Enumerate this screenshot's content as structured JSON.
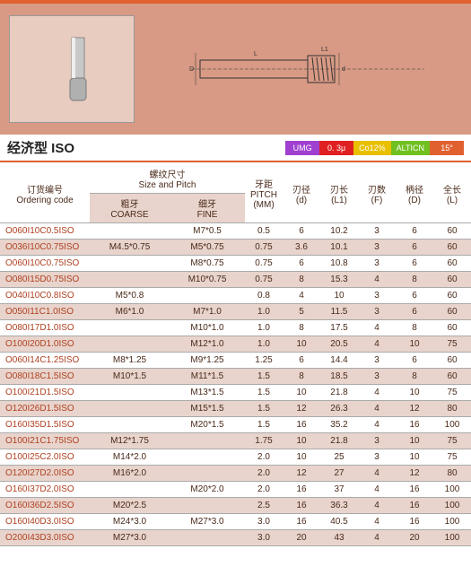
{
  "title": "经济型  ISO",
  "badges": [
    {
      "label": "UMG",
      "bg": "#a040d0"
    },
    {
      "label": "0. 3μ",
      "bg": "#e02020"
    },
    {
      "label": "Co12%",
      "bg": "#e8c000"
    },
    {
      "label": "ALTICN",
      "bg": "#70c020"
    },
    {
      "label": "15°",
      "bg": "#e06030"
    }
  ],
  "headers": {
    "code": "订货编号",
    "code_en": "Ordering code",
    "size": "螺纹尺寸",
    "size_en": "Size and Pitch",
    "coarse": "粗牙",
    "coarse_en": "COARSE",
    "fine": "细牙",
    "fine_en": "FINE",
    "pitch": "牙距",
    "pitch2": "PITCH",
    "pitch3": "(MM)",
    "d": "刃径",
    "d2": "(d)",
    "l1": "刃长",
    "l12": "(L1)",
    "f": "刃数",
    "f2": "(F)",
    "D": "柄径",
    "D2": "(D)",
    "L": "全长",
    "L2": "(L)"
  },
  "rows": [
    {
      "code": "O060I10C0.5ISO",
      "coarse": "",
      "fine": "M7*0.5",
      "pitch": "0.5",
      "d": "6",
      "l1": "10.2",
      "f": "3",
      "D": "6",
      "L": "60"
    },
    {
      "code": "O036I10C0.75ISO",
      "coarse": "M4.5*0.75",
      "fine": "M5*0.75",
      "pitch": "0.75",
      "d": "3.6",
      "l1": "10.1",
      "f": "3",
      "D": "6",
      "L": "60"
    },
    {
      "code": "O060I10C0.75ISO",
      "coarse": "",
      "fine": "M8*0.75",
      "pitch": "0.75",
      "d": "6",
      "l1": "10.8",
      "f": "3",
      "D": "6",
      "L": "60"
    },
    {
      "code": "O080I15D0.75ISO",
      "coarse": "",
      "fine": "M10*0.75",
      "pitch": "0.75",
      "d": "8",
      "l1": "15.3",
      "f": "4",
      "D": "8",
      "L": "60"
    },
    {
      "code": "O040I10C0.8ISO",
      "coarse": "M5*0.8",
      "fine": "",
      "pitch": "0.8",
      "d": "4",
      "l1": "10",
      "f": "3",
      "D": "6",
      "L": "60"
    },
    {
      "code": "O050I11C1.0ISO",
      "coarse": "M6*1.0",
      "fine": "M7*1.0",
      "pitch": "1.0",
      "d": "5",
      "l1": "11.5",
      "f": "3",
      "D": "6",
      "L": "60"
    },
    {
      "code": "O080I17D1.0ISO",
      "coarse": "",
      "fine": "M10*1.0",
      "pitch": "1.0",
      "d": "8",
      "l1": "17.5",
      "f": "4",
      "D": "8",
      "L": "60"
    },
    {
      "code": "O100I20D1.0ISO",
      "coarse": "",
      "fine": "M12*1.0",
      "pitch": "1.0",
      "d": "10",
      "l1": "20.5",
      "f": "4",
      "D": "10",
      "L": "75"
    },
    {
      "code": "O060I14C1.25ISO",
      "coarse": "M8*1.25",
      "fine": "M9*1.25",
      "pitch": "1.25",
      "d": "6",
      "l1": "14.4",
      "f": "3",
      "D": "6",
      "L": "60"
    },
    {
      "code": "O080I18C1.5ISO",
      "coarse": "M10*1.5",
      "fine": "M11*1.5",
      "pitch": "1.5",
      "d": "8",
      "l1": "18.5",
      "f": "3",
      "D": "8",
      "L": "60"
    },
    {
      "code": "O100I21D1.5ISO",
      "coarse": "",
      "fine": "M13*1.5",
      "pitch": "1.5",
      "d": "10",
      "l1": "21.8",
      "f": "4",
      "D": "10",
      "L": "75"
    },
    {
      "code": "O120I26D1.5ISO",
      "coarse": "",
      "fine": "M15*1.5",
      "pitch": "1.5",
      "d": "12",
      "l1": "26.3",
      "f": "4",
      "D": "12",
      "L": "80"
    },
    {
      "code": "O160I35D1.5ISO",
      "coarse": "",
      "fine": "M20*1.5",
      "pitch": "1.5",
      "d": "16",
      "l1": "35.2",
      "f": "4",
      "D": "16",
      "L": "100"
    },
    {
      "code": "O100I21C1.75ISO",
      "coarse": "M12*1.75",
      "fine": "",
      "pitch": "1.75",
      "d": "10",
      "l1": "21.8",
      "f": "3",
      "D": "10",
      "L": "75"
    },
    {
      "code": "O100I25C2.0ISO",
      "coarse": "M14*2.0",
      "fine": "",
      "pitch": "2.0",
      "d": "10",
      "l1": "25",
      "f": "3",
      "D": "10",
      "L": "75"
    },
    {
      "code": "O120I27D2.0ISO",
      "coarse": "M16*2.0",
      "fine": "",
      "pitch": "2.0",
      "d": "12",
      "l1": "27",
      "f": "4",
      "D": "12",
      "L": "80"
    },
    {
      "code": "O160I37D2.0ISO",
      "coarse": "",
      "fine": "M20*2.0",
      "pitch": "2.0",
      "d": "16",
      "l1": "37",
      "f": "4",
      "D": "16",
      "L": "100"
    },
    {
      "code": "O160I36D2.5ISO",
      "coarse": "M20*2.5",
      "fine": "",
      "pitch": "2.5",
      "d": "16",
      "l1": "36.3",
      "f": "4",
      "D": "16",
      "L": "100"
    },
    {
      "code": "O160I40D3.0ISO",
      "coarse": "M24*3.0",
      "fine": "M27*3.0",
      "pitch": "3.0",
      "d": "16",
      "l1": "40.5",
      "f": "4",
      "D": "16",
      "L": "100"
    },
    {
      "code": "O200I43D3.0ISO",
      "coarse": "M27*3.0",
      "fine": "",
      "pitch": "3.0",
      "d": "20",
      "l1": "43",
      "f": "4",
      "D": "20",
      "L": "100"
    }
  ]
}
